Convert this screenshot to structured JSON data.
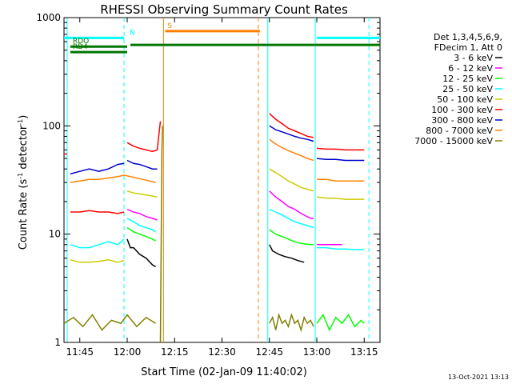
{
  "chart_data": {
    "type": "line",
    "title": "RHESSI Observing Summary Count Rates",
    "xlabel": "Start Time (02-Jan-09 11:40:02)",
    "ylabel_pre": "Count Rate (s",
    "ylabel_sup": "-1",
    "ylabel_post": " detector",
    "ylabel_sup2": "-1",
    "ylabel_end": ")",
    "xlim_min": [
      0,
      100
    ],
    "yscale": "log",
    "ylim": [
      1,
      1000
    ],
    "x_ticks": [
      {
        "value": 5,
        "label": "11:45"
      },
      {
        "value": 20,
        "label": "12:00"
      },
      {
        "value": 35,
        "label": "12:15"
      },
      {
        "value": 50,
        "label": "12:30"
      },
      {
        "value": 65,
        "label": "12:45"
      },
      {
        "value": 80,
        "label": "13:00"
      },
      {
        "value": 95,
        "label": "13:15"
      }
    ],
    "y_ticks": [
      {
        "value": 1,
        "label": "1"
      },
      {
        "value": 10,
        "label": "10"
      },
      {
        "value": 100,
        "label": "100"
      },
      {
        "value": 1000,
        "label": "1000"
      }
    ],
    "legend": {
      "placement": "right",
      "header": [
        "Det 1,3,4,5,6,9,",
        "FDecim 1, Att 0"
      ],
      "entries": [
        {
          "label": "3 - 6 keV",
          "color": "#000000"
        },
        {
          "label": "6 - 12 keV",
          "color": "#ff00ff"
        },
        {
          "label": "12 - 25 keV",
          "color": "#00ff00"
        },
        {
          "label": "25 - 50 keV",
          "color": "#00ffff"
        },
        {
          "label": "50 - 100 keV",
          "color": "#cccc00"
        },
        {
          "label": "100 - 300 keV",
          "color": "#ff0000"
        },
        {
          "label": "300 - 800 keV",
          "color": "#0000cc"
        },
        {
          "label": "800 - 7000 keV",
          "color": "#ff8000"
        },
        {
          "label": "7000 - 15000 keV",
          "color": "#808000"
        }
      ]
    },
    "series": [
      {
        "name": "3 - 6 keV",
        "color": "#000000",
        "segments": [
          {
            "x": [
              20,
              21,
              22,
              24,
              26,
              28,
              29
            ],
            "y": [
              9,
              7.5,
              7.5,
              6.5,
              6,
              5.2,
              5
            ]
          },
          {
            "x": [
              65,
              66,
              68,
              70,
              72,
              74,
              76
            ],
            "y": [
              8,
              7,
              6.5,
              6.2,
              6,
              5.7,
              5.5
            ]
          }
        ]
      },
      {
        "name": "6 - 12 keV",
        "color": "#ff00ff",
        "segments": [
          {
            "x": [
              20,
              22,
              24,
              26,
              28,
              29.5
            ],
            "y": [
              17,
              16,
              15.5,
              14.5,
              14,
              13.5
            ]
          },
          {
            "x": [
              65,
              67,
              69,
              71,
              73,
              75,
              78,
              79
            ],
            "y": [
              25,
              22,
              20,
              18,
              17,
              15.5,
              14,
              14
            ]
          },
          {
            "x": [
              80,
              83,
              86,
              88
            ],
            "y": [
              8,
              8,
              8,
              8
            ]
          }
        ]
      },
      {
        "name": "12 - 25 keV",
        "color": "#00ff00",
        "segments": [
          {
            "x": [
              20,
              22,
              24,
              26,
              28,
              29
            ],
            "y": [
              11.5,
              10.5,
              10,
              9.5,
              9,
              8.7
            ]
          },
          {
            "x": [
              65,
              67,
              69,
              71,
              73,
              75,
              78,
              79
            ],
            "y": [
              11,
              10,
              9.5,
              9,
              8.5,
              8.2,
              8,
              8
            ]
          }
        ]
      },
      {
        "name": "25 - 50 keV",
        "color": "#00ffff",
        "segments": [
          {
            "x": [
              2,
              5,
              8,
              11,
              14,
              17,
              19
            ],
            "y": [
              8,
              7.5,
              7.5,
              8,
              8.5,
              8,
              9
            ]
          },
          {
            "x": [
              20,
              22,
              24,
              26,
              28,
              29
            ],
            "y": [
              14,
              13,
              12,
              11.5,
              11,
              10.5
            ]
          },
          {
            "x": [
              65,
              67,
              69,
              71,
              73,
              75,
              77,
              79
            ],
            "y": [
              17,
              16,
              15,
              14,
              13,
              12.5,
              12,
              11.5
            ]
          },
          {
            "x": [
              80,
              83,
              86,
              89,
              92,
              95
            ],
            "y": [
              7.5,
              7.5,
              7.3,
              7.3,
              7.2,
              7.2
            ]
          }
        ]
      },
      {
        "name": "50 - 100 keV",
        "color": "#cccc00",
        "segments": [
          {
            "x": [
              2,
              5,
              8,
              11,
              14,
              17,
              19
            ],
            "y": [
              5.8,
              5.5,
              5.5,
              5.6,
              5.8,
              5.5,
              5.7
            ]
          },
          {
            "x": [
              20,
              22,
              24,
              26,
              28,
              29.5
            ],
            "y": [
              25,
              24,
              23.5,
              23,
              22.5,
              22
            ]
          },
          {
            "x": [
              65,
              67,
              69,
              71,
              73,
              75,
              77,
              79
            ],
            "y": [
              40,
              37,
              34,
              31,
              29,
              27,
              26,
              25
            ]
          },
          {
            "x": [
              80,
              83,
              86,
              89,
              92,
              95
            ],
            "y": [
              22,
              21.5,
              21.5,
              21,
              21,
              21
            ]
          }
        ]
      },
      {
        "name": "100 - 300 keV",
        "color": "#ff0000",
        "segments": [
          {
            "x": [
              0,
              1
            ],
            "y": [
              55,
              55
            ]
          },
          {
            "x": [
              2,
              5,
              8,
              11,
              14,
              17,
              19
            ],
            "y": [
              16,
              16,
              16.5,
              16,
              16,
              15.5,
              16
            ]
          },
          {
            "x": [
              20,
              22,
              24,
              26,
              28,
              29.5,
              30.5
            ],
            "y": [
              70,
              65,
              62,
              60,
              58,
              60,
              110
            ]
          },
          {
            "x": [
              65,
              67,
              69,
              71,
              73,
              75,
              77,
              79
            ],
            "y": [
              130,
              115,
              105,
              95,
              90,
              85,
              80,
              78
            ]
          },
          {
            "x": [
              80,
              83,
              86,
              89,
              92,
              95
            ],
            "y": [
              62,
              61,
              61,
              60,
              60,
              60
            ]
          }
        ]
      },
      {
        "name": "300 - 800 keV",
        "color": "#0000cc",
        "segments": [
          {
            "x": [
              2,
              5,
              8,
              11,
              14,
              17,
              19
            ],
            "y": [
              36,
              38,
              40,
              38,
              40,
              44,
              45
            ]
          },
          {
            "x": [
              20,
              22,
              24,
              26,
              28,
              29.5
            ],
            "y": [
              48,
              45,
              44,
              42,
              40,
              40
            ]
          },
          {
            "x": [
              65,
              67,
              69,
              71,
              73,
              75,
              77,
              79
            ],
            "y": [
              100,
              92,
              88,
              84,
              80,
              77,
              75,
              72
            ]
          },
          {
            "x": [
              80,
              83,
              86,
              89,
              92,
              95
            ],
            "y": [
              50,
              49,
              49,
              48,
              48,
              48
            ]
          }
        ]
      },
      {
        "name": "800 - 7000 keV",
        "color": "#ff8000",
        "segments": [
          {
            "x": [
              2,
              5,
              8,
              11,
              14,
              17,
              19,
              21,
              23,
              25,
              27,
              29
            ],
            "y": [
              30,
              31,
              32,
              32,
              33,
              34,
              35,
              34,
              33,
              32,
              31,
              30
            ]
          },
          {
            "x": [
              65,
              67,
              69,
              71,
              73,
              75,
              77,
              79
            ],
            "y": [
              75,
              68,
              63,
              59,
              56,
              53,
              50,
              48
            ]
          },
          {
            "x": [
              80,
              83,
              86,
              89,
              92,
              95
            ],
            "y": [
              32,
              32,
              31,
              31,
              31,
              31
            ]
          }
        ]
      },
      {
        "name": "7000 - 15000 keV",
        "color": "#808000",
        "segments": [
          {
            "x": [
              0,
              3,
              6,
              9,
              12,
              15,
              18,
              20,
              23,
              26,
              29
            ],
            "y": [
              1.5,
              1.7,
              1.4,
              1.8,
              1.3,
              1.6,
              1.5,
              1.8,
              1.4,
              1.7,
              1.5
            ]
          },
          {
            "x": [
              30.5,
              31,
              31.2
            ],
            "y": [
              1,
              60,
              100
            ]
          },
          {
            "x": [
              65,
              66,
              67,
              68,
              69,
              70,
              71,
              72,
              73,
              74,
              75,
              76,
              77,
              78,
              79
            ],
            "y": [
              1.5,
              1.7,
              1.3,
              1.8,
              1.5,
              1.6,
              1.4,
              1.8,
              1.5,
              1.6,
              1.3,
              1.7,
              1.5,
              1.6,
              1.4
            ]
          }
        ]
      },
      {
        "name": "",
        "color": "#00ff00",
        "segments": [
          {
            "x": [
              80,
              82,
              84,
              86,
              88,
              90,
              92,
              94,
              95
            ],
            "y": [
              1.5,
              1.8,
              1.3,
              1.7,
              1.5,
              1.8,
              1.4,
              1.6,
              1.5
            ]
          }
        ]
      }
    ],
    "flags": [
      {
        "label": "",
        "color": "#00ffff",
        "x_start": 0,
        "x_end": 19,
        "y": 650
      },
      {
        "label": "N",
        "color": "#00ffff",
        "x_start": 20,
        "x_end": 20,
        "y": 650
      },
      {
        "label": "",
        "color": "#00ffff",
        "x_start": 80,
        "x_end": 100,
        "y": 650
      },
      {
        "label": "S",
        "color": "#ff8000",
        "x_start": 32,
        "x_end": 62,
        "y": 750
      },
      {
        "label": "RDO",
        "color": "#007700",
        "x_start": 2,
        "x_end": 20,
        "y": 540
      },
      {
        "label": "RD4",
        "color": "#007700",
        "x_start": 2,
        "x_end": 20,
        "y": 480
      },
      {
        "label": "",
        "color": "#007700",
        "x_start": 21,
        "x_end": 100,
        "y": 560
      }
    ],
    "vlines": [
      {
        "x": 1,
        "color": "#00ffff",
        "style": "solid"
      },
      {
        "x": 19,
        "color": "#00ffff",
        "style": "dashed"
      },
      {
        "x": 31.5,
        "color": "#ff8000",
        "style": "solid"
      },
      {
        "x": 61.5,
        "color": "#ff8000",
        "style": "dashed"
      },
      {
        "x": 64.5,
        "color": "#00ffff",
        "style": "solid"
      },
      {
        "x": 79.5,
        "color": "#00ffff",
        "style": "solid"
      },
      {
        "x": 96.5,
        "color": "#00ffff",
        "style": "dashed"
      }
    ],
    "grid": false,
    "timestamp": "13-Oct-2021 13:13"
  }
}
